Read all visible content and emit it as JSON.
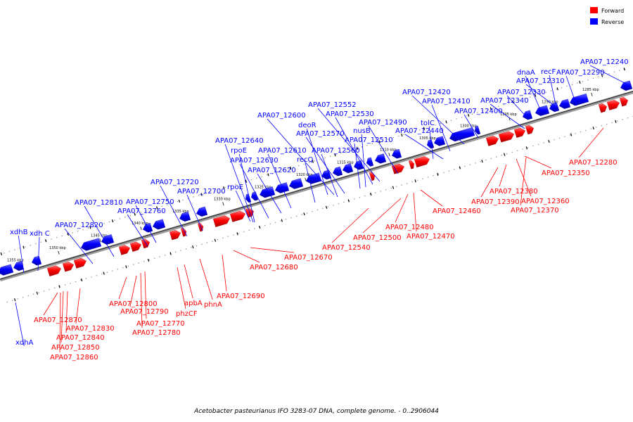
{
  "legend": {
    "forward": {
      "label": "Forward",
      "color": "#ff0000"
    },
    "reverse": {
      "label": "Reverse",
      "color": "#0000ff"
    }
  },
  "caption": "Acetobacter pasteurianus IFO 3283-07 DNA, complete genome. - 0..2906044",
  "ticks": [
    "1285 kbp",
    "1290 kbp",
    "1295 kbp",
    "1300 kbp",
    "1305 kbp",
    "1310 kbp",
    "1315 kbp",
    "1320 kbp",
    "1325 kbp",
    "1330 kbp",
    "1335 kbp",
    "1340 kbp",
    "1345 kbp",
    "1350 kbp",
    "1355 kbp"
  ],
  "reverse_labels": [
    "APA07_12240",
    "recF",
    "APA07_12290",
    "dnaA",
    "APA07_12310",
    "APA07_12330",
    "APA07_12340",
    "APA07_12400",
    "APA07_12420",
    "APA07_12410",
    "tolC",
    "APA07_12440",
    "APA07_12552",
    "APA07_12530",
    "APA07_12490",
    "APA07_12600",
    "deoR",
    "nusB",
    "APA07_12570",
    "APA07_12510",
    "APA07_12640",
    "rpoE",
    "APA07_12610",
    "APA07_12560",
    "APA07_12630",
    "recQ",
    "APA07_12620",
    "APA07_12720",
    "APA07_12700",
    "rpoE",
    "APA07_12750",
    "APA07_12810",
    "APA07_12760",
    "APA07_12820",
    "xdhB",
    "xdh C",
    "xdhA"
  ],
  "forward_labels": [
    "APA07_12280",
    "APA07_12350",
    "APA07_12360",
    "APA07_12380",
    "APA07_12390",
    "APA07_12370",
    "APA07_12460",
    "APA07_12480",
    "APA07_12470",
    "APA07_12500",
    "APA07_12540",
    "APA07_12670",
    "APA07_12680",
    "APA07_12690",
    "phnA",
    "apbA",
    "phzCF",
    "APA07_12800",
    "APA07_12790",
    "APA07_12770",
    "APA07_12780",
    "APA07_12870",
    "APA07_12830",
    "APA07_12840",
    "APA07_12850",
    "APA07_12860"
  ]
}
